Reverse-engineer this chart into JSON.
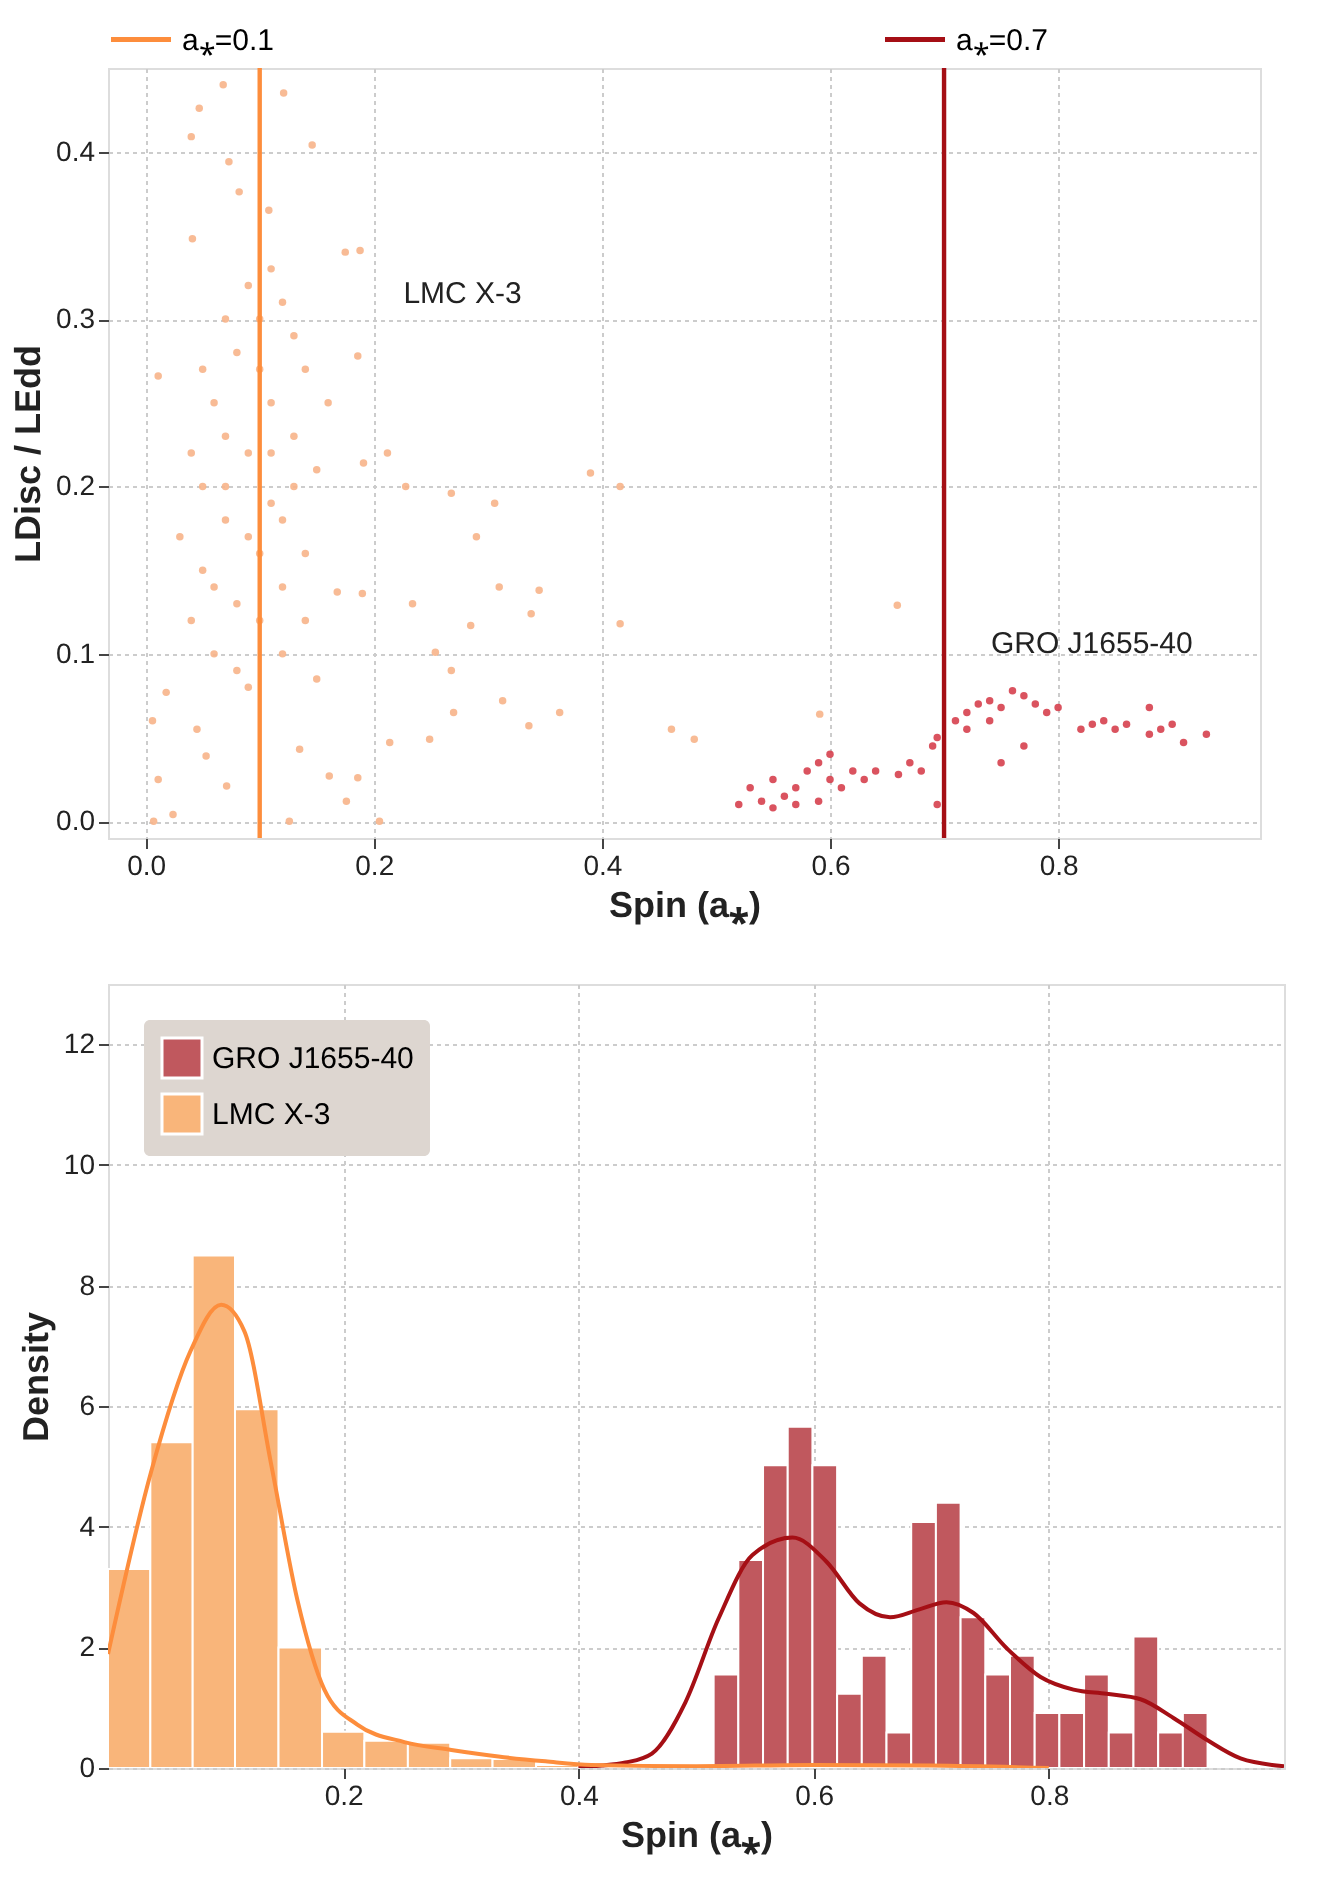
{
  "chart_data": [
    {
      "type": "scatter",
      "xlabel": "Spin (a⁎)",
      "ylabel": "LDisc / LEdd",
      "xlim": [
        -0.033,
        0.977
      ],
      "ylim": [
        -0.01,
        0.45
      ],
      "xticks": [
        {
          "value": 0,
          "label": "0.0"
        },
        {
          "value": 0.2,
          "label": "0.2"
        },
        {
          "value": 0.4,
          "label": "0.4"
        },
        {
          "value": 0.6,
          "label": "0.6"
        },
        {
          "value": 0.8,
          "label": "0.8"
        }
      ],
      "yticks": [
        {
          "value": 0,
          "label": "0.0"
        },
        {
          "value": 0.1,
          "label": "0.1"
        },
        {
          "value": 0.2,
          "label": "0.2"
        },
        {
          "value": 0.3,
          "label": "0.3"
        },
        {
          "value": 0.4,
          "label": "0.4"
        }
      ],
      "grid": true,
      "legend": "top",
      "marker": "circle",
      "series": [
        {
          "color": "#f7b48a",
          "x": [
            0.068,
            0.121,
            0.047,
            0.04,
            0.146,
            0.073,
            0.082,
            0.108,
            0.175,
            0.188,
            0.041,
            0.186,
            0.011,
            0.191,
            0.212,
            0.228,
            0.268,
            0.306,
            0.29,
            0.31,
            0.345,
            0.338,
            0.285,
            0.234,
            0.254,
            0.268,
            0.313,
            0.27,
            0.336,
            0.363,
            0.249,
            0.214,
            0.186,
            0.205,
            0.126,
            0.007,
            0.024,
            0.011,
            0.071,
            0.161,
            0.176,
            0.053,
            0.006,
            0.018,
            0.045,
            0.135,
            0.15,
            0.19,
            0.168,
            0.39,
            0.416,
            0.416,
            0.461,
            0.481,
            0.591,
            0.659,
            0.05,
            0.07,
            0.09,
            0.11,
            0.13,
            0.06,
            0.08,
            0.1,
            0.12,
            0.14,
            0.04,
            0.06,
            0.08,
            0.1,
            0.12,
            0.14,
            0.05,
            0.07,
            0.09,
            0.11,
            0.13,
            0.03,
            0.15,
            0.06,
            0.08,
            0.1,
            0.12,
            0.14,
            0.07,
            0.09,
            0.11,
            0.05,
            0.13,
            0.04,
            0.16,
            0.09,
            0.07,
            0.11,
            0.1,
            0.12
          ],
          "values": [
            0.44,
            0.435,
            0.426,
            0.409,
            0.404,
            0.394,
            0.376,
            0.365,
            0.34,
            0.341,
            0.348,
            0.278,
            0.266,
            0.214,
            0.22,
            0.2,
            0.196,
            0.19,
            0.17,
            0.14,
            0.138,
            0.124,
            0.117,
            0.13,
            0.101,
            0.09,
            0.072,
            0.065,
            0.057,
            0.065,
            0.049,
            0.047,
            0.026,
            0.0,
            0.0,
            0.0,
            0.004,
            0.025,
            0.021,
            0.027,
            0.012,
            0.039,
            0.06,
            0.077,
            0.055,
            0.043,
            0.085,
            0.136,
            0.137,
            0.208,
            0.2,
            0.118,
            0.055,
            0.049,
            0.064,
            0.129,
            0.15,
            0.18,
            0.22,
            0.25,
            0.2,
            0.25,
            0.28,
            0.3,
            0.31,
            0.27,
            0.12,
            0.1,
            0.09,
            0.12,
            0.14,
            0.16,
            0.2,
            0.23,
            0.17,
            0.19,
            0.23,
            0.17,
            0.21,
            0.14,
            0.13,
            0.16,
            0.1,
            0.12,
            0.3,
            0.32,
            0.33,
            0.27,
            0.29,
            0.22,
            0.25,
            0.08,
            0.2,
            0.22,
            0.27,
            0.18
          ]
        },
        {
          "color": "#d6404e",
          "x": [
            0.52,
            0.53,
            0.54,
            0.55,
            0.56,
            0.57,
            0.58,
            0.59,
            0.6,
            0.61,
            0.62,
            0.6,
            0.57,
            0.59,
            0.55,
            0.63,
            0.64,
            0.66,
            0.67,
            0.68,
            0.69,
            0.694,
            0.71,
            0.72,
            0.73,
            0.74,
            0.75,
            0.76,
            0.77,
            0.78,
            0.72,
            0.74,
            0.694,
            0.75,
            0.77,
            0.79,
            0.8,
            0.83,
            0.84,
            0.85,
            0.86,
            0.88,
            0.89,
            0.88,
            0.9,
            0.93,
            0.91,
            0.82
          ],
          "values": [
            0.01,
            0.02,
            0.012,
            0.025,
            0.015,
            0.02,
            0.03,
            0.035,
            0.025,
            0.02,
            0.03,
            0.04,
            0.01,
            0.012,
            0.008,
            0.025,
            0.03,
            0.028,
            0.035,
            0.03,
            0.045,
            0.05,
            0.06,
            0.065,
            0.07,
            0.072,
            0.068,
            0.078,
            0.075,
            0.07,
            0.055,
            0.06,
            0.01,
            0.035,
            0.045,
            0.065,
            0.068,
            0.058,
            0.06,
            0.055,
            0.058,
            0.052,
            0.055,
            0.068,
            0.058,
            0.052,
            0.047,
            0.055
          ]
        }
      ],
      "ref_lines": [
        {
          "axis": "x",
          "value": 0.1,
          "label": "a⁎=0.1",
          "color": "#fd8d3c"
        },
        {
          "axis": "x",
          "value": 0.7,
          "label": "a⁎=0.7",
          "color": "#a50f15"
        }
      ],
      "annotations": [
        "LMC X-3",
        "GRO J1655-40"
      ]
    },
    {
      "type": "histogram",
      "xlabel": "Spin (a⁎)",
      "ylabel": "Density",
      "xlim": [
        0,
        1
      ],
      "ylim": [
        0,
        13
      ],
      "xticks": [
        0.2,
        0.4,
        0.6,
        0.8
      ],
      "yticks": [
        0,
        2,
        4,
        6,
        8,
        10,
        12
      ],
      "grid": true,
      "legend": "top left",
      "series": [
        {
          "name": "GRO J1655-40",
          "type": "histogram",
          "color": "#c0585e",
          "bins": [
            0.515,
            0.536,
            0.557,
            0.578,
            0.599,
            0.62,
            0.641,
            0.662,
            0.683,
            0.704,
            0.725,
            0.746,
            0.767,
            0.788,
            0.809,
            0.83,
            0.851,
            0.872,
            0.893,
            0.914,
            0.935
          ],
          "values": [
            1.55,
            3.45,
            5.02,
            5.66,
            5.02,
            1.23,
            1.86,
            0.59,
            4.08,
            4.4,
            2.5,
            1.55,
            1.86,
            0.91,
            0.91,
            1.55,
            0.59,
            2.18,
            0.59,
            0.91
          ]
        },
        {
          "name": "LMC X-3",
          "type": "histogram",
          "color": "#f9b57a",
          "bins": [
            0,
            0.036,
            0.072,
            0.108,
            0.145,
            0.182,
            0.218,
            0.255,
            0.291,
            0.327,
            0.364,
            0.4
          ],
          "values": [
            3.3,
            5.4,
            8.5,
            5.95,
            2.0,
            0.6,
            0.45,
            0.42,
            0.16,
            0.15,
            0.05
          ]
        },
        {
          "type": "line",
          "color": "#a50f15",
          "x": [
            0.4,
            0.42,
            0.44,
            0.4625,
            0.491,
            0.519,
            0.548,
            0.582,
            0.611,
            0.639,
            0.665,
            0.69,
            0.713,
            0.736,
            0.764,
            0.793,
            0.821,
            0.849,
            0.878,
            0.906,
            0.935,
            0.963,
            1.0
          ],
          "values": [
            0.02,
            0.04,
            0.09,
            0.24,
            1.09,
            2.47,
            3.53,
            3.82,
            3.42,
            2.73,
            2.5,
            2.63,
            2.75,
            2.57,
            1.99,
            1.51,
            1.3,
            1.23,
            1.14,
            0.83,
            0.46,
            0.16,
            0.03
          ]
        },
        {
          "type": "line",
          "color": "#fd8d3c",
          "x": [
            0.0,
            0.0365,
            0.0703,
            0.0962,
            0.116,
            0.139,
            0.161,
            0.184,
            0.212,
            0.252,
            0.292,
            0.332,
            0.372,
            0.411,
            0.5,
            0.6,
            0.7,
            0.8
          ],
          "values": [
            1.89,
            4.9,
            6.92,
            7.68,
            7.24,
            5.01,
            2.79,
            1.3,
            0.72,
            0.43,
            0.3,
            0.19,
            0.11,
            0.05,
            0.03,
            0.05,
            0.04,
            0.0
          ]
        }
      ]
    }
  ]
}
